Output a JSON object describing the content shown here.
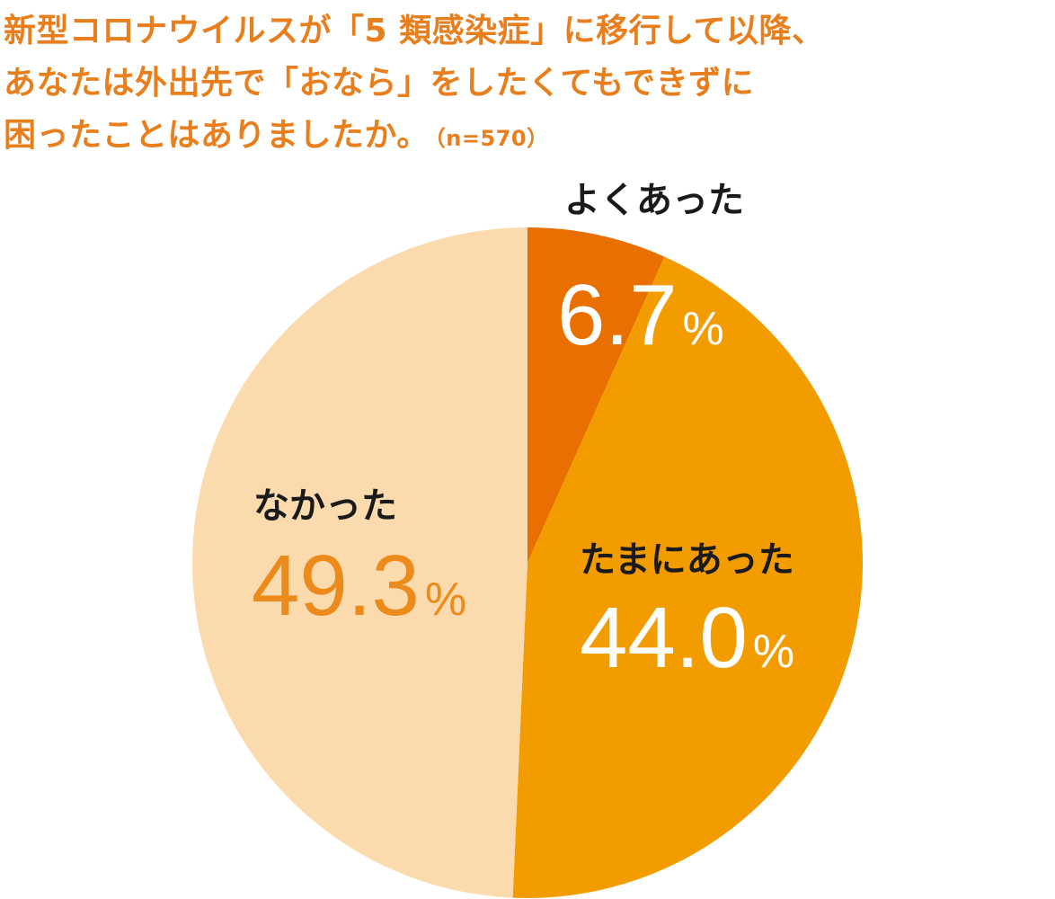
{
  "title": {
    "lines": [
      "新型コロナウイルスが「5 類感染症」に移行して以降、",
      "あなたは外出先で「おなら」をしたくてもできずに",
      "困ったことはありましたか。"
    ],
    "sample": "（n=570）"
  },
  "chart_data": {
    "type": "pie",
    "start_angle_deg": 0,
    "direction": "clockwise",
    "slices": [
      {
        "label": "よくあった",
        "value": 6.7,
        "display": "6.7",
        "unit": "%",
        "color": "#e96f00",
        "value_color": "#ffffff"
      },
      {
        "label": "たまにあった",
        "value": 44.0,
        "display": "44.0",
        "unit": "%",
        "color": "#f39c00",
        "value_color": "#ffffff"
      },
      {
        "label": "なかった",
        "value": 49.3,
        "display": "49.3",
        "unit": "%",
        "color": "#fbdbae",
        "value_color": "#ec8a1c"
      }
    ]
  }
}
